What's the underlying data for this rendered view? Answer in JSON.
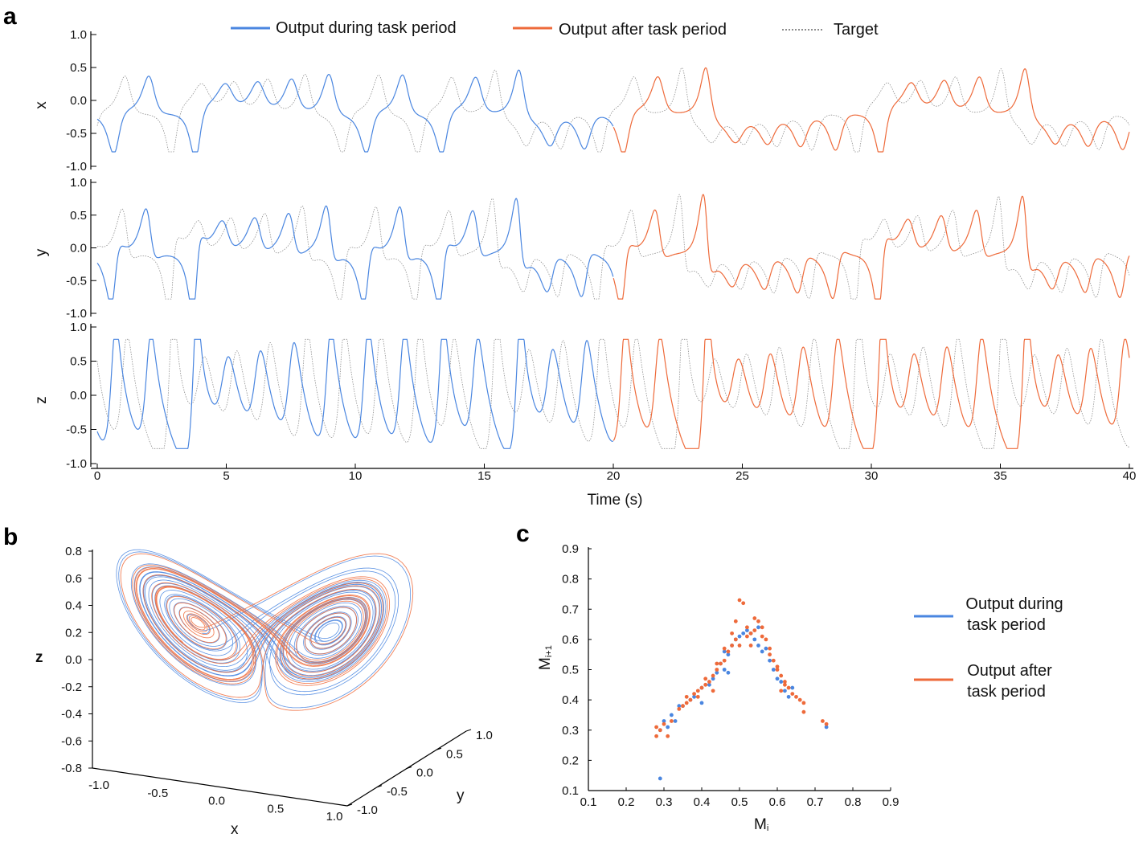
{
  "panels": {
    "a": "a",
    "b": "b",
    "c": "c"
  },
  "colors": {
    "during": "#4a86e0",
    "after": "#ee6a3a",
    "target": "#8e8e8e"
  },
  "legend_a": {
    "during": "Output during task period",
    "after": "Output after task period",
    "target": "Target"
  },
  "legend_c": {
    "during_line1": "Output during",
    "during_line2": "task period",
    "after_line1": "Output after",
    "after_line2": "task period"
  },
  "chart_data": [
    {
      "id": "a",
      "type": "line",
      "title": "",
      "xlabel": "Time (s)",
      "xlim": [
        0,
        40
      ],
      "xticks": [
        "0",
        "5",
        "10",
        "15",
        "20",
        "25",
        "30",
        "35",
        "40"
      ],
      "task_period_end_s": 20,
      "subplots": [
        {
          "ylabel": "x",
          "ylim": [
            -1.0,
            1.0
          ],
          "yticks": [
            "1.0",
            "0.5",
            "0.0",
            "-0.5",
            "-1.0"
          ],
          "mean": -0.2,
          "amplitude": 0.42
        },
        {
          "ylabel": "y",
          "ylim": [
            -1.0,
            1.0
          ],
          "yticks": [
            "1.0",
            "0.5",
            "0.0",
            "-0.5",
            "-1.0"
          ],
          "mean": -0.1,
          "amplitude": 0.45
        },
        {
          "ylabel": "z",
          "ylim": [
            -1.0,
            1.0
          ],
          "yticks": [
            "1.0",
            "0.5",
            "0.0",
            "-0.5",
            "-1.0"
          ],
          "mean": 0.0,
          "amplitude": 0.55
        }
      ],
      "series": [
        {
          "name": "Output during task period",
          "t_range": [
            0,
            20
          ]
        },
        {
          "name": "Output after task period",
          "t_range": [
            20,
            40
          ]
        },
        {
          "name": "Target",
          "t_range": [
            0,
            40
          ]
        }
      ]
    },
    {
      "id": "b",
      "type": "line",
      "projection": "3d",
      "xlabel": "x",
      "ylabel": "y",
      "zlabel": "z",
      "xlim": [
        -1.0,
        1.0
      ],
      "ylim": [
        -1.0,
        1.0
      ],
      "zlim": [
        -0.8,
        0.8
      ],
      "xticks": [
        "-1.0",
        "-0.5",
        "0.0",
        "0.5",
        "1.0"
      ],
      "yticks": [
        "-1.0",
        "-0.5",
        "0.0",
        "0.5",
        "1.0"
      ],
      "zticks": [
        "0.8",
        "0.6",
        "0.4",
        "0.2",
        "0.0",
        "-0.2",
        "-0.4",
        "-0.6",
        "-0.8"
      ],
      "series": [
        {
          "name": "Output during task period"
        },
        {
          "name": "Output after task period"
        }
      ]
    },
    {
      "id": "c",
      "type": "scatter",
      "xlabel": "M",
      "xlabel_sub": "i",
      "ylabel": "M",
      "ylabel_sub": "i+1",
      "xlim": [
        0.1,
        0.9
      ],
      "ylim": [
        0.1,
        0.9
      ],
      "xticks": [
        "0.1",
        "0.2",
        "0.3",
        "0.4",
        "0.5",
        "0.6",
        "0.7",
        "0.8",
        "0.9"
      ],
      "yticks": [
        "0.9",
        "0.8",
        "0.7",
        "0.6",
        "0.5",
        "0.4",
        "0.3",
        "0.2",
        "0.1"
      ],
      "series": [
        {
          "name": "Output during task period",
          "points": [
            [
              0.29,
              0.14
            ],
            [
              0.29,
              0.3
            ],
            [
              0.3,
              0.33
            ],
            [
              0.31,
              0.31
            ],
            [
              0.32,
              0.35
            ],
            [
              0.33,
              0.33
            ],
            [
              0.35,
              0.38
            ],
            [
              0.37,
              0.4
            ],
            [
              0.38,
              0.41
            ],
            [
              0.4,
              0.44
            ],
            [
              0.42,
              0.45
            ],
            [
              0.43,
              0.47
            ],
            [
              0.44,
              0.49
            ],
            [
              0.45,
              0.52
            ],
            [
              0.46,
              0.5
            ],
            [
              0.47,
              0.55
            ],
            [
              0.48,
              0.58
            ],
            [
              0.49,
              0.6
            ],
            [
              0.5,
              0.61
            ],
            [
              0.51,
              0.62
            ],
            [
              0.52,
              0.63
            ],
            [
              0.53,
              0.62
            ],
            [
              0.54,
              0.6
            ],
            [
              0.55,
              0.58
            ],
            [
              0.56,
              0.56
            ],
            [
              0.57,
              0.57
            ],
            [
              0.58,
              0.53
            ],
            [
              0.59,
              0.5
            ],
            [
              0.6,
              0.47
            ],
            [
              0.61,
              0.46
            ],
            [
              0.62,
              0.43
            ],
            [
              0.63,
              0.41
            ],
            [
              0.64,
              0.44
            ],
            [
              0.73,
              0.31
            ],
            [
              0.4,
              0.39
            ],
            [
              0.34,
              0.38
            ],
            [
              0.46,
              0.56
            ],
            [
              0.47,
              0.49
            ],
            [
              0.55,
              0.64
            ]
          ]
        },
        {
          "name": "Output after task period",
          "points": [
            [
              0.28,
              0.28
            ],
            [
              0.28,
              0.31
            ],
            [
              0.29,
              0.3
            ],
            [
              0.3,
              0.32
            ],
            [
              0.31,
              0.28
            ],
            [
              0.32,
              0.33
            ],
            [
              0.34,
              0.37
            ],
            [
              0.35,
              0.38
            ],
            [
              0.36,
              0.39
            ],
            [
              0.37,
              0.4
            ],
            [
              0.38,
              0.42
            ],
            [
              0.39,
              0.43
            ],
            [
              0.4,
              0.44
            ],
            [
              0.41,
              0.45
            ],
            [
              0.42,
              0.46
            ],
            [
              0.43,
              0.48
            ],
            [
              0.44,
              0.5
            ],
            [
              0.45,
              0.52
            ],
            [
              0.46,
              0.53
            ],
            [
              0.47,
              0.56
            ],
            [
              0.48,
              0.58
            ],
            [
              0.49,
              0.6
            ],
            [
              0.49,
              0.66
            ],
            [
              0.5,
              0.73
            ],
            [
              0.51,
              0.72
            ],
            [
              0.52,
              0.64
            ],
            [
              0.53,
              0.62
            ],
            [
              0.54,
              0.67
            ],
            [
              0.55,
              0.66
            ],
            [
              0.56,
              0.64
            ],
            [
              0.57,
              0.6
            ],
            [
              0.58,
              0.57
            ],
            [
              0.59,
              0.53
            ],
            [
              0.6,
              0.5
            ],
            [
              0.61,
              0.48
            ],
            [
              0.62,
              0.46
            ],
            [
              0.63,
              0.44
            ],
            [
              0.64,
              0.42
            ],
            [
              0.65,
              0.41
            ],
            [
              0.66,
              0.4
            ],
            [
              0.67,
              0.39
            ],
            [
              0.67,
              0.36
            ],
            [
              0.72,
              0.33
            ],
            [
              0.73,
              0.32
            ],
            [
              0.36,
              0.41
            ],
            [
              0.41,
              0.47
            ],
            [
              0.44,
              0.52
            ],
            [
              0.48,
              0.62
            ],
            [
              0.5,
              0.58
            ],
            [
              0.53,
              0.58
            ],
            [
              0.56,
              0.61
            ],
            [
              0.58,
              0.55
            ],
            [
              0.6,
              0.51
            ],
            [
              0.62,
              0.45
            ],
            [
              0.43,
              0.43
            ],
            [
              0.39,
              0.41
            ],
            [
              0.52,
              0.61
            ],
            [
              0.46,
              0.57
            ],
            [
              0.54,
              0.63
            ],
            [
              0.61,
              0.43
            ]
          ]
        }
      ]
    }
  ]
}
